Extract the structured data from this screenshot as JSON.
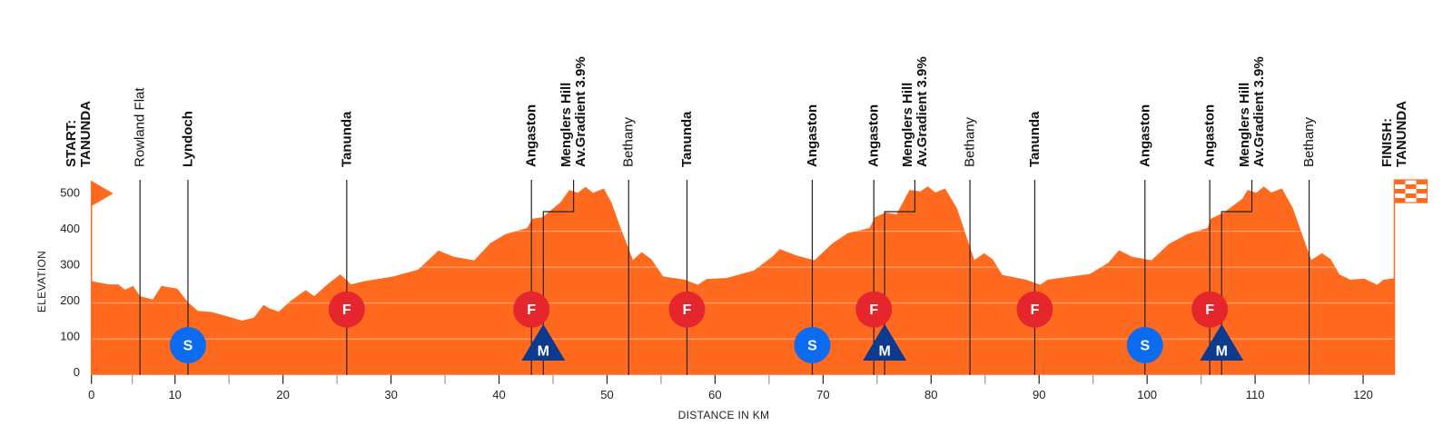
{
  "chart_data": {
    "type": "area",
    "xlabel": "DISTANCE IN KM",
    "ylabel": "ELEVATION",
    "xlim": [
      0,
      122.9
    ],
    "ylim": [
      0,
      500
    ],
    "x_ticks": [
      0,
      10,
      20,
      30,
      40,
      50,
      60,
      70,
      80,
      90,
      100,
      110,
      120
    ],
    "x_minor_ticks": [
      5,
      15,
      25,
      35,
      45,
      55,
      65,
      75,
      85,
      95,
      105,
      115
    ],
    "y_ticks": [
      0,
      100,
      200,
      300,
      400,
      500
    ],
    "grid": true,
    "colors": {
      "profile": "#ff6a1f",
      "sprint": "#0b6cf2",
      "feed": "#e6262d",
      "mountain": "#0b3a8f",
      "line": "#222222"
    },
    "profile": [
      [
        0,
        261
      ],
      [
        1,
        257
      ],
      [
        2.1,
        252
      ],
      [
        3.3,
        252
      ],
      [
        4.1,
        237
      ],
      [
        5.1,
        248
      ],
      [
        5.9,
        219
      ],
      [
        7.4,
        210
      ],
      [
        8.4,
        248
      ],
      [
        10.2,
        240
      ],
      [
        11.2,
        202
      ],
      [
        12.1,
        178
      ],
      [
        13.4,
        175
      ],
      [
        15.1,
        161
      ],
      [
        16.2,
        151
      ],
      [
        17.3,
        159
      ],
      [
        18.2,
        195
      ],
      [
        18.7,
        186
      ],
      [
        19.6,
        176
      ],
      [
        20.7,
        206
      ],
      [
        22.1,
        236
      ],
      [
        22.9,
        219
      ],
      [
        24.1,
        252
      ],
      [
        25.3,
        280
      ],
      [
        26.3,
        252
      ],
      [
        27.4,
        260
      ],
      [
        30.2,
        274
      ],
      [
        32.5,
        293
      ],
      [
        34.4,
        346
      ],
      [
        35.8,
        329
      ],
      [
        37.7,
        319
      ],
      [
        39.2,
        367
      ],
      [
        40.6,
        392
      ],
      [
        42.6,
        409
      ],
      [
        43.1,
        435
      ],
      [
        44.0,
        439
      ],
      [
        45.7,
        481
      ],
      [
        46.5,
        515
      ],
      [
        47.3,
        507
      ],
      [
        48.0,
        524
      ],
      [
        48.7,
        507
      ],
      [
        49.7,
        519
      ],
      [
        50.4,
        481
      ],
      [
        51.2,
        414
      ],
      [
        52.4,
        320
      ],
      [
        53.2,
        342
      ],
      [
        54.1,
        322
      ],
      [
        55.2,
        274
      ],
      [
        57.2,
        265
      ],
      [
        58.4,
        251
      ],
      [
        59.2,
        267
      ],
      [
        61.1,
        270
      ],
      [
        63.6,
        291
      ],
      [
        65.3,
        329
      ],
      [
        66.0,
        350
      ],
      [
        67.5,
        333
      ],
      [
        69.2,
        319
      ],
      [
        70.9,
        367
      ],
      [
        72.3,
        395
      ],
      [
        74.3,
        409
      ],
      [
        74.8,
        439
      ],
      [
        75.8,
        452
      ],
      [
        76.8,
        447
      ],
      [
        78.0,
        515
      ],
      [
        79.0,
        511
      ],
      [
        79.7,
        525
      ],
      [
        80.4,
        508
      ],
      [
        81.3,
        519
      ],
      [
        82.4,
        464
      ],
      [
        84.0,
        320
      ],
      [
        84.9,
        339
      ],
      [
        85.7,
        322
      ],
      [
        86.6,
        278
      ],
      [
        88.8,
        265
      ],
      [
        90.1,
        251
      ],
      [
        90.8,
        265
      ],
      [
        94.7,
        281
      ],
      [
        96.4,
        312
      ],
      [
        97.4,
        347
      ],
      [
        98.6,
        329
      ],
      [
        100.4,
        319
      ],
      [
        102.0,
        364
      ],
      [
        103.7,
        392
      ],
      [
        105.6,
        409
      ],
      [
        105.9,
        435
      ],
      [
        107.1,
        452
      ],
      [
        108.8,
        490
      ],
      [
        109.3,
        515
      ],
      [
        110.1,
        507
      ],
      [
        110.8,
        525
      ],
      [
        111.5,
        508
      ],
      [
        112.5,
        519
      ],
      [
        113.5,
        464
      ],
      [
        115.2,
        320
      ],
      [
        116.2,
        339
      ],
      [
        117.0,
        322
      ],
      [
        117.8,
        280
      ],
      [
        118.8,
        265
      ],
      [
        120.1,
        268
      ],
      [
        121.3,
        251
      ],
      [
        121.9,
        265
      ],
      [
        122.9,
        269
      ]
    ],
    "start": {
      "km": 0,
      "lines": [
        "START:",
        "TANUNDA"
      ]
    },
    "finish": {
      "km": 122.9,
      "lines": [
        "FINISH:",
        "TANUNDA"
      ]
    },
    "points": [
      {
        "km": 5.9,
        "lines": [
          "Rowland Flat"
        ],
        "bold": false
      },
      {
        "km": 11.2,
        "lines": [
          "Lyndoch"
        ],
        "bold": true,
        "badge": "S"
      },
      {
        "km": 25.9,
        "lines": [
          "Tanunda"
        ],
        "bold": true,
        "badge": "F"
      },
      {
        "km": 43.0,
        "lines": [
          "Angaston"
        ],
        "bold": true,
        "badge": "F"
      },
      {
        "km": 44.1,
        "label_km": 46.9,
        "lines": [
          "Menglers Hill",
          "Av.Gradient 3.9%"
        ],
        "bold": true,
        "badge": "M"
      },
      {
        "km": 52.0,
        "lines": [
          "Bethany"
        ],
        "bold": false
      },
      {
        "km": 57.4,
        "lines": [
          "Tanunda"
        ],
        "bold": true,
        "badge": "F"
      },
      {
        "km": 69.0,
        "lines": [
          "Angaston"
        ],
        "bold": true,
        "badge": "S"
      },
      {
        "km": 74.7,
        "lines": [
          "Angaston"
        ],
        "bold": true,
        "badge": "F"
      },
      {
        "km": 75.7,
        "label_km": 78.5,
        "lines": [
          "Menglers Hill",
          "Av.Gradient 3.9%"
        ],
        "bold": true,
        "badge": "M"
      },
      {
        "km": 83.6,
        "lines": [
          "Bethany"
        ],
        "bold": false
      },
      {
        "km": 89.6,
        "lines": [
          "Tanunda"
        ],
        "bold": true,
        "badge": "F"
      },
      {
        "km": 99.8,
        "lines": [
          "Angaston"
        ],
        "bold": true,
        "badge": "S"
      },
      {
        "km": 105.8,
        "lines": [
          "Angaston"
        ],
        "bold": true,
        "badge": "F"
      },
      {
        "km": 106.9,
        "label_km": 109.7,
        "lines": [
          "Menglers Hill",
          "Av.Gradient 3.9%"
        ],
        "bold": true,
        "badge": "M"
      },
      {
        "km": 115.0,
        "lines": [
          "Bethany"
        ],
        "bold": false
      }
    ],
    "badge_icons": {
      "S": "sprint-badge-icon",
      "F": "feed-zone-badge-icon",
      "M": "mountain-climb-badge-icon"
    }
  }
}
